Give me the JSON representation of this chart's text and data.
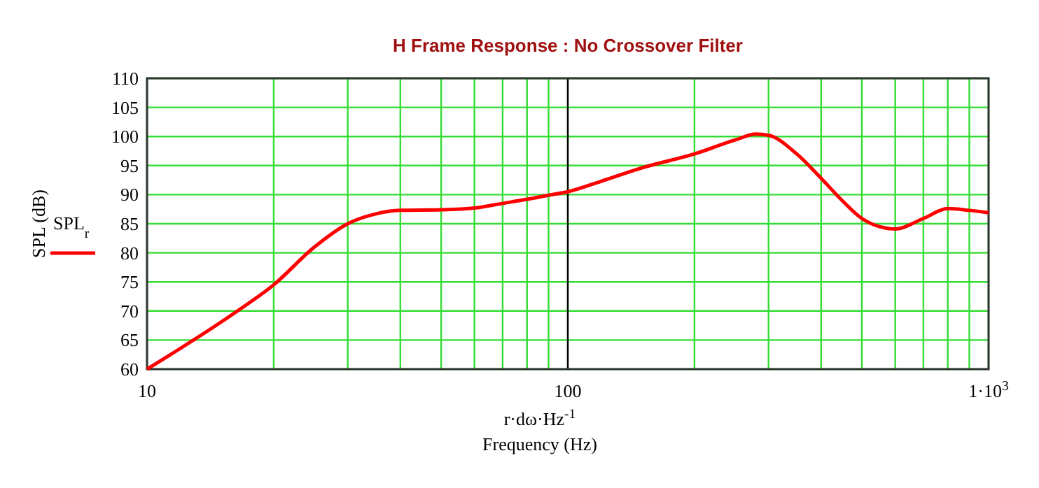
{
  "chart_data": {
    "type": "line",
    "title": "H Frame Response : No Crossover Filter",
    "xlabel": "r·dω·Hz$^{-1}$\nFrequency (Hz)",
    "ylabel": "SPL (dB)",
    "log": "x",
    "grid": true,
    "legend": "left",
    "line_style": "solid",
    "marker": "none",
    "xlim": [
      10,
      1000
    ],
    "ylim": [
      60,
      110
    ],
    "xticks": [
      10,
      {
        "value": 20,
        "label": null
      },
      {
        "value": 30,
        "label": null
      },
      {
        "value": 40,
        "label": null
      },
      {
        "value": 50,
        "label": null
      },
      {
        "value": 60,
        "label": null
      },
      {
        "value": 70,
        "label": null
      },
      {
        "value": 80,
        "label": null
      },
      {
        "value": 90,
        "label": null
      },
      100,
      {
        "value": 200,
        "label": null
      },
      {
        "value": 300,
        "label": null
      },
      {
        "value": 400,
        "label": null
      },
      {
        "value": 500,
        "label": null
      },
      {
        "value": 600,
        "label": null
      },
      {
        "value": 700,
        "label": null
      },
      {
        "value": 800,
        "label": null
      },
      {
        "value": 900,
        "label": null
      },
      {
        "value": 1000,
        "label": "1·10$^{3}$"
      }
    ],
    "yticks": [
      60,
      65,
      70,
      75,
      80,
      85,
      90,
      95,
      100,
      105,
      110
    ],
    "ref_lines": [
      {
        "axis": "x",
        "value": 100,
        "color": "#000000"
      }
    ],
    "x": [
      10,
      16.4,
      20,
      25,
      30,
      35,
      40,
      50,
      60,
      70,
      80,
      90,
      100,
      120,
      150,
      200,
      250,
      280,
      300,
      350,
      400,
      450,
      500,
      550,
      600,
      700,
      800,
      900,
      1000
    ],
    "series": [
      {
        "name": "SPL$_{r}$",
        "color": "#ff0000",
        "values": [
          60,
          70,
          74.5,
          81,
          85,
          86.7,
          87.3,
          87.4,
          87.7,
          88.5,
          89.2,
          89.9,
          90.5,
          92.3,
          94.6,
          97,
          99.4,
          100.4,
          100.2,
          97,
          92.8,
          88.9,
          85.9,
          84.5,
          84.1,
          85.9,
          87.6,
          87.3,
          86.9
        ]
      }
    ]
  }
}
